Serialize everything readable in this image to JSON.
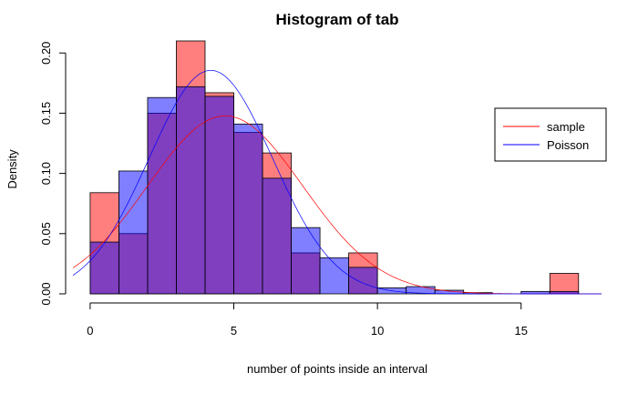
{
  "chart_data": {
    "type": "bar",
    "title": "Histogram of tab",
    "xlabel": "number of points inside an interval",
    "ylabel": "Density",
    "xlim": [
      -0.6,
      17.8
    ],
    "ylim": [
      0,
      0.21
    ],
    "x_ticks": [
      0,
      5,
      10,
      15
    ],
    "y_ticks": [
      0.0,
      0.05,
      0.1,
      0.15,
      0.2
    ],
    "x_tick_labels": [
      "0",
      "5",
      "10",
      "15"
    ],
    "y_tick_labels": [
      "0.00",
      "0.05",
      "0.10",
      "0.15",
      "0.20"
    ],
    "bin_edges": [
      0,
      1,
      2,
      3,
      4,
      5,
      6,
      7,
      8,
      9,
      10,
      11,
      12,
      13,
      14,
      15,
      16,
      17
    ],
    "series": [
      {
        "name": "sample",
        "color": "#ff0000",
        "fill": "rgba(255,0,0,0.5)",
        "values": [
          0.084,
          0.05,
          0.15,
          0.21,
          0.167,
          0.134,
          0.117,
          0.034,
          0.0,
          0.034,
          0.0,
          0.0,
          0.0,
          0.0,
          0.0,
          0.0,
          0.017
        ]
      },
      {
        "name": "Poisson",
        "color": "#0000ff",
        "fill": "rgba(0,0,255,0.5)",
        "values": [
          0.043,
          0.102,
          0.163,
          0.172,
          0.164,
          0.141,
          0.096,
          0.055,
          0.03,
          0.022,
          0.005,
          0.006,
          0.003,
          0.001,
          0.0,
          0.002,
          0.002
        ]
      }
    ],
    "density_curves": [
      {
        "series": "sample",
        "color": "#ff0000",
        "mean": 4.7,
        "sd": 2.7
      },
      {
        "series": "Poisson",
        "color": "#0000ff",
        "mean": 4.2,
        "sd": 2.15
      }
    ],
    "legend": {
      "placement": "right",
      "entries": [
        {
          "label": "sample",
          "color": "#ff0000"
        },
        {
          "label": "Poisson",
          "color": "#0000ff"
        }
      ]
    },
    "grid": false
  }
}
